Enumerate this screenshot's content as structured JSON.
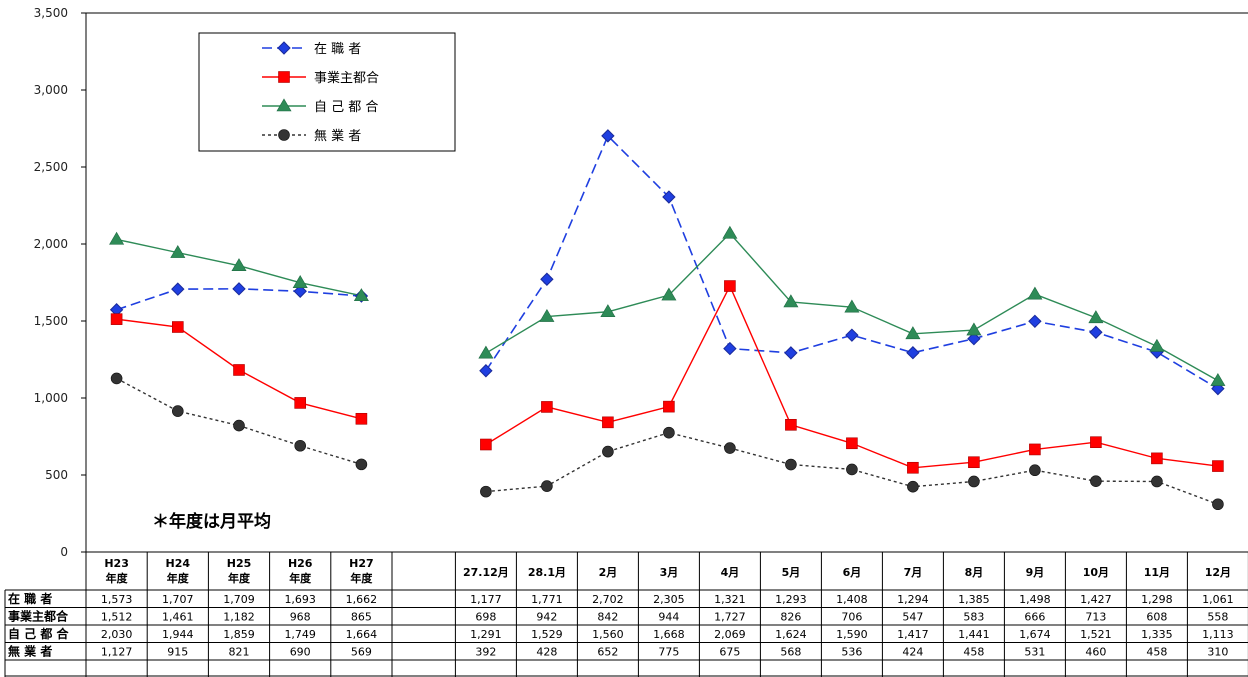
{
  "chart_data": {
    "type": "line",
    "y_ticks": [
      "3,500",
      "3,000",
      "2,500",
      "2,000",
      "1,500",
      "1,000",
      "500",
      "0"
    ],
    "ylim": [
      0,
      3500
    ],
    "grid": false,
    "legend_position": "top-left",
    "note": "＊年度は月平均",
    "groups": [
      {
        "categories": [
          {
            "line1": "H23",
            "line2": "年度"
          },
          {
            "line1": "H24",
            "line2": "年度"
          },
          {
            "line1": "H25",
            "line2": "年度"
          },
          {
            "line1": "H26",
            "line2": "年度"
          },
          {
            "line1": "H27",
            "line2": "年度"
          }
        ],
        "series_values": [
          [
            1573,
            1707,
            1709,
            1693,
            1662
          ],
          [
            1512,
            1461,
            1182,
            968,
            865
          ],
          [
            2030,
            1944,
            1859,
            1749,
            1664
          ],
          [
            1127,
            915,
            821,
            690,
            569
          ]
        ],
        "table_text": [
          [
            "1,573",
            "1,707",
            "1,709",
            "1,693",
            "1,662"
          ],
          [
            "1,512",
            "1,461",
            "1,182",
            "968",
            "865"
          ],
          [
            "2,030",
            "1,944",
            "1,859",
            "1,749",
            "1,664"
          ],
          [
            "1,127",
            "915",
            "821",
            "690",
            "569"
          ]
        ]
      },
      {
        "categories": [
          {
            "line1": "27.12月",
            "line2": ""
          },
          {
            "line1": "28.1月",
            "line2": ""
          },
          {
            "line1": "2月",
            "line2": ""
          },
          {
            "line1": "3月",
            "line2": ""
          },
          {
            "line1": "4月",
            "line2": ""
          },
          {
            "line1": "5月",
            "line2": ""
          },
          {
            "line1": "6月",
            "line2": ""
          },
          {
            "line1": "7月",
            "line2": ""
          },
          {
            "line1": "8月",
            "line2": ""
          },
          {
            "line1": "9月",
            "line2": ""
          },
          {
            "line1": "10月",
            "line2": ""
          },
          {
            "line1": "11月",
            "line2": ""
          },
          {
            "line1": "12月",
            "line2": ""
          }
        ],
        "series_values": [
          [
            1177,
            1771,
            2702,
            2305,
            1321,
            1293,
            1408,
            1294,
            1385,
            1498,
            1427,
            1298,
            1061
          ],
          [
            698,
            942,
            842,
            944,
            1727,
            826,
            706,
            547,
            583,
            666,
            713,
            608,
            558
          ],
          [
            1291,
            1529,
            1560,
            1668,
            2069,
            1624,
            1590,
            1417,
            1441,
            1674,
            1521,
            1335,
            1113
          ],
          [
            392,
            428,
            652,
            775,
            675,
            568,
            536,
            424,
            458,
            531,
            460,
            458,
            310
          ]
        ],
        "table_text": [
          [
            "1,177",
            "1,771",
            "2,702",
            "2,305",
            "1,321",
            "1,293",
            "1,408",
            "1,294",
            "1,385",
            "1,498",
            "1,427",
            "1,298",
            "1,061"
          ],
          [
            "698",
            "942",
            "842",
            "944",
            "1,727",
            "826",
            "706",
            "547",
            "583",
            "666",
            "713",
            "608",
            "558"
          ],
          [
            "1,291",
            "1,529",
            "1,560",
            "1,668",
            "2,069",
            "1,624",
            "1,590",
            "1,417",
            "1,441",
            "1,674",
            "1,521",
            "1,335",
            "1,113"
          ],
          [
            "392",
            "428",
            "652",
            "775",
            "675",
            "568",
            "536",
            "424",
            "458",
            "531",
            "460",
            "458",
            "310"
          ]
        ]
      }
    ],
    "series": [
      {
        "name": "在 職 者",
        "table_label": "在 職 者",
        "color": "#1f3fe0",
        "marker": "diamond",
        "dash": "dashed"
      },
      {
        "name": "事業主都合",
        "table_label": "事業主都合",
        "color": "#ff0000",
        "marker": "square",
        "dash": "solid"
      },
      {
        "name": "自 己 都 合",
        "table_label": "自 己 都 合",
        "color": "#2e8b57",
        "marker": "triangle",
        "dash": "solid"
      },
      {
        "name": "無 業 者",
        "table_label": "無 業 者",
        "color": "#333333",
        "marker": "circle",
        "dash": "dotted"
      }
    ]
  }
}
